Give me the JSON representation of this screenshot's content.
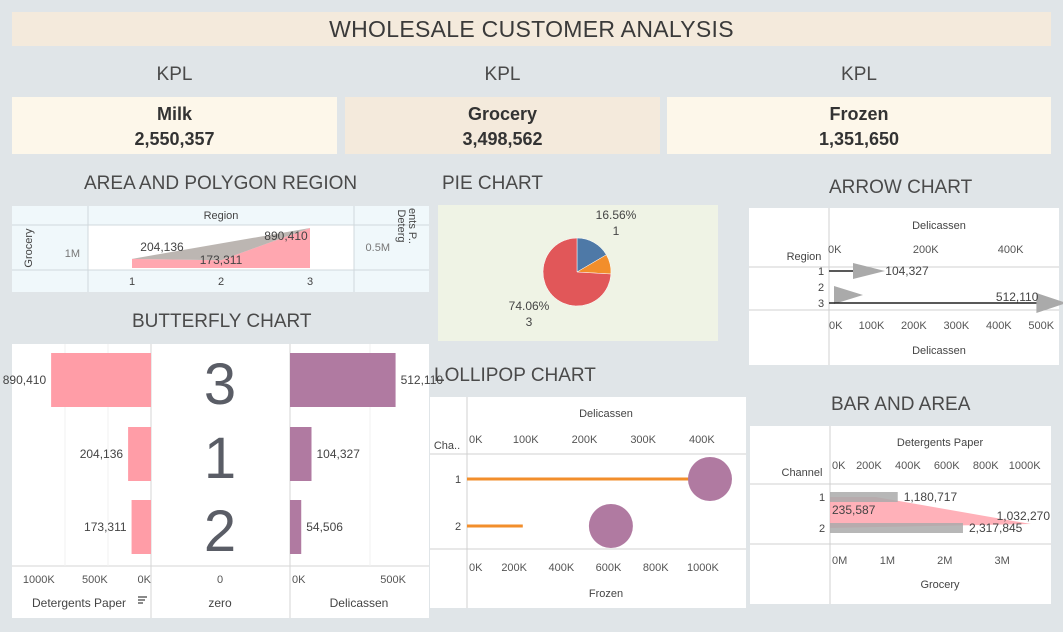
{
  "dashboard": {
    "title": "WHOLESALE CUSTOMER ANALYSIS"
  },
  "kpis": [
    {
      "header": "KPL",
      "name": "Milk",
      "value": "2,550,357"
    },
    {
      "header": "KPL",
      "name": "Grocery",
      "value": "3,498,562"
    },
    {
      "header": "KPL",
      "name": "Frozen",
      "value": "1,351,650"
    }
  ],
  "sections": {
    "area": "AREA AND POLYGON REGION",
    "pie": "PIE CHART",
    "arrow": "ARROW CHART",
    "butterfly": "BUTTERFLY CHART",
    "lollipop": "LOLLIPOP CHART",
    "bar_area": "BAR AND AREA"
  },
  "colors": {
    "pink": "#ff9da7",
    "purple": "#b07aa1",
    "pie_blue": "#4e79a7",
    "pie_orange": "#f28e2b",
    "pie_red": "#e15759",
    "orange": "#f28e2b",
    "gray": "#aaaaaa"
  },
  "chart_data": [
    {
      "id": "area",
      "type": "area",
      "title": "AREA AND POLYGON REGION",
      "x_header": "Region",
      "categories": [
        "1",
        "2",
        "3"
      ],
      "left_axis_title": "Grocery",
      "left_tick": "1M",
      "right_axis_title": "Detergents P..",
      "right_tick": "0.5M",
      "series": [
        {
          "values": [
            204136,
            173311,
            890410
          ]
        }
      ],
      "data_labels": [
        "204,136",
        "173,311",
        "890,410"
      ]
    },
    {
      "id": "pie",
      "type": "pie",
      "title": "PIE CHART",
      "slices": [
        {
          "value": 16.56,
          "label": "16.56%",
          "sublabel": "1",
          "color": "#4e79a7"
        },
        {
          "value": 9.38,
          "label": "",
          "sublabel": "",
          "color": "#f28e2b"
        },
        {
          "value": 74.06,
          "label": "74.06%",
          "sublabel": "3",
          "color": "#e15759"
        }
      ]
    },
    {
      "id": "arrow",
      "type": "bar",
      "title": "ARROW CHART",
      "axis_title": "Delicassen",
      "row_header": "Region",
      "categories": [
        "1",
        "2",
        "3"
      ],
      "values": [
        104327,
        54506,
        512110
      ],
      "data_labels": [
        "104,327",
        "",
        "512,110"
      ],
      "top_ticks": [
        "0K",
        "200K",
        "400K"
      ],
      "bottom_ticks": [
        "0K",
        "100K",
        "200K",
        "300K",
        "400K",
        "500K"
      ],
      "xlim": [
        0,
        530000
      ]
    },
    {
      "id": "butterfly",
      "type": "bar",
      "title": "BUTTERFLY CHART",
      "categories": [
        "3",
        "1",
        "2"
      ],
      "series": [
        {
          "name": "Detergents Paper",
          "values": [
            890410,
            204136,
            173311
          ]
        },
        {
          "name": "Delicassen",
          "values": [
            512110,
            104327,
            54506
          ]
        }
      ],
      "left_labels": [
        "890,410",
        "204,136",
        "173,311"
      ],
      "right_labels": [
        "512,110",
        "104,327",
        "54,506"
      ],
      "left_ticks": [
        "1000K",
        "500K",
        "0K"
      ],
      "mid_ticks": [
        "0"
      ],
      "right_ticks": [
        "0K",
        "500K"
      ],
      "left_axis_title": "Detergents Paper",
      "mid_axis_title": "zero",
      "right_axis_title": "Delicassen",
      "left_xlim": [
        0,
        1150000
      ],
      "right_xlim": [
        0,
        650000
      ]
    },
    {
      "id": "lollipop",
      "type": "scatter",
      "title": "LOLLIPOP CHART",
      "row_header": "Cha..",
      "categories": [
        "1",
        "2"
      ],
      "top_axis_title": "Delicassen",
      "top_ticks": [
        "0K",
        "100K",
        "200K",
        "300K",
        "400K"
      ],
      "top_xlim": [
        0,
        470000
      ],
      "bottom_axis_title": "Frozen",
      "bottom_ticks": [
        "0K",
        "200K",
        "400K",
        "600K",
        "800K",
        "1000K"
      ],
      "bottom_xlim": [
        0,
        1170000
      ],
      "series": [
        {
          "name": "Delicassen",
          "values": [
            400000,
            95000
          ]
        },
        {
          "name": "Frozen",
          "values": [
            1030000,
            610000
          ]
        }
      ]
    },
    {
      "id": "bar_area",
      "type": "bar",
      "title": "BAR AND AREA",
      "row_header": "Channel",
      "categories": [
        "1",
        "2"
      ],
      "top_axis_title": "Detergents Paper",
      "top_ticks": [
        "0K",
        "200K",
        "400K",
        "600K",
        "800K",
        "1000K"
      ],
      "top_xlim": [
        0,
        1120000
      ],
      "bottom_axis_title": "Grocery",
      "bottom_ticks": [
        "0M",
        "1M",
        "2M",
        "3M"
      ],
      "bottom_xlim": [
        0,
        3800000
      ],
      "series": [
        {
          "name": "Grocery",
          "values": [
            1180717,
            2317845
          ]
        },
        {
          "name": "Detergents Paper",
          "values": [
            235587,
            1032270
          ]
        }
      ],
      "bar_labels": [
        "1,180,717",
        "2,317,845"
      ],
      "area_labels": [
        "235,587",
        "1,032,270"
      ]
    }
  ]
}
